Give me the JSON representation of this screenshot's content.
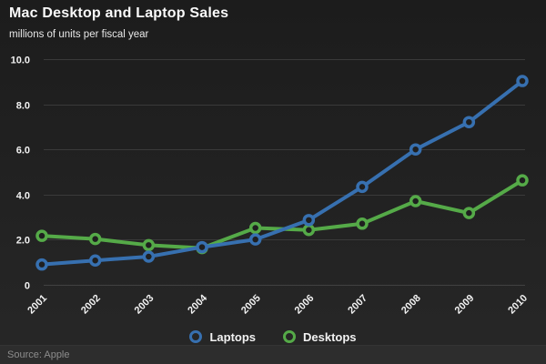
{
  "header": {
    "title": "Mac Desktop and Laptop Sales",
    "subtitle": "millions of units per fiscal year"
  },
  "footer": {
    "source": "Source: Apple"
  },
  "colors": {
    "background_top": "#1c1c1c",
    "background_bottom": "#272727",
    "grid": "#3a3a3a",
    "zero_line": "#414141",
    "footer_bar": "#2d2d2d",
    "text": "#f2f2f2",
    "muted_text": "#8d8d8d",
    "laptops_blue": "#3770b0",
    "desktops_green": "#55aa48"
  },
  "chart_data": {
    "type": "line",
    "title": "Mac Desktop and Laptop Sales",
    "subtitle": "millions of units per fiscal year",
    "x": [
      "2001",
      "2002",
      "2003",
      "2004",
      "2005",
      "2006",
      "2007",
      "2008",
      "2009",
      "2010"
    ],
    "series": [
      {
        "name": "Laptops",
        "color": "#3770b0",
        "values": [
          0.9,
          1.08,
          1.25,
          1.67,
          2.01,
          2.87,
          4.34,
          6.0,
          7.21,
          9.03
        ]
      },
      {
        "name": "Desktops",
        "color": "#55aa48",
        "values": [
          2.17,
          2.03,
          1.76,
          1.63,
          2.52,
          2.43,
          2.71,
          3.71,
          3.18,
          4.63
        ]
      }
    ],
    "ylim": [
      0,
      10
    ],
    "yticks": [
      {
        "value": 0,
        "label": "0"
      },
      {
        "value": 2,
        "label": "2.0"
      },
      {
        "value": 4,
        "label": "4.0"
      },
      {
        "value": 6,
        "label": "6.0"
      },
      {
        "value": 8,
        "label": "8.0"
      },
      {
        "value": 10,
        "label": "10.0"
      }
    ],
    "grid": "horizontal",
    "x_label_rotation": -45,
    "legend_position": "bottom",
    "source": "Source: Apple"
  }
}
